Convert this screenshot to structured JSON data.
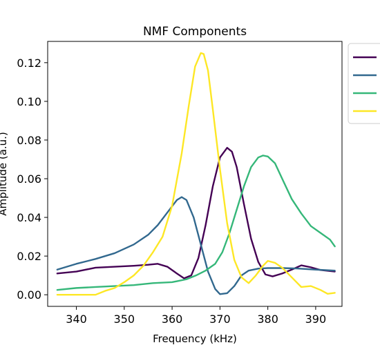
{
  "chart_data": {
    "type": "line",
    "title": "NMF Components",
    "xlabel": "Frequency (kHz)",
    "ylabel": "Amplitude (a.u.)",
    "xlim": [
      334,
      395.5
    ],
    "ylim": [
      -0.006,
      0.131
    ],
    "xticks": [
      340,
      350,
      360,
      370,
      380,
      390
    ],
    "xtick_labels": [
      "340",
      "350",
      "360",
      "370",
      "380",
      "390"
    ],
    "yticks": [
      0.0,
      0.02,
      0.04,
      0.06,
      0.08,
      0.1,
      0.12
    ],
    "ytick_labels": [
      "0.00",
      "0.02",
      "0.04",
      "0.06",
      "0.08",
      "0.10",
      "0.12"
    ],
    "grid": false,
    "legend": {
      "location": "outside-top-right"
    },
    "series": [
      {
        "color": "#440154",
        "x": [
          336,
          340,
          344,
          348,
          352,
          355,
          357,
          359,
          361,
          362.5,
          364,
          365.5,
          367,
          368.5,
          370,
          371.5,
          372.5,
          373.5,
          375,
          376.5,
          378,
          379.5,
          381,
          383,
          385,
          387,
          389,
          391,
          394
        ],
        "y": [
          0.011,
          0.012,
          0.014,
          0.0145,
          0.015,
          0.0155,
          0.016,
          0.0145,
          0.011,
          0.0085,
          0.01,
          0.019,
          0.036,
          0.056,
          0.071,
          0.076,
          0.074,
          0.066,
          0.047,
          0.029,
          0.017,
          0.0105,
          0.0095,
          0.011,
          0.013,
          0.0152,
          0.0142,
          0.0128,
          0.012
        ]
      },
      {
        "color": "#31688e",
        "x": [
          336,
          340,
          344,
          348,
          352,
          355,
          357,
          359,
          361,
          362,
          363,
          364.5,
          366,
          367.5,
          369,
          370,
          371.5,
          373,
          374.5,
          376,
          378,
          380,
          383,
          386,
          390,
          394
        ],
        "y": [
          0.013,
          0.016,
          0.0185,
          0.0215,
          0.026,
          0.031,
          0.036,
          0.0425,
          0.049,
          0.0505,
          0.049,
          0.04,
          0.026,
          0.012,
          0.003,
          0.0003,
          0.0008,
          0.0045,
          0.01,
          0.0125,
          0.0135,
          0.0138,
          0.0138,
          0.0136,
          0.013,
          0.0125
        ]
      },
      {
        "color": "#35b779",
        "x": [
          336,
          340,
          344,
          348,
          352,
          356,
          360,
          363,
          365,
          367,
          369,
          370.5,
          372,
          373.5,
          375,
          376.5,
          378,
          379,
          380,
          381.5,
          383,
          385,
          387,
          389,
          391,
          393,
          394
        ],
        "y": [
          0.0025,
          0.0035,
          0.004,
          0.0045,
          0.005,
          0.006,
          0.0065,
          0.008,
          0.01,
          0.0125,
          0.016,
          0.022,
          0.032,
          0.044,
          0.056,
          0.066,
          0.071,
          0.072,
          0.0715,
          0.068,
          0.06,
          0.0495,
          0.042,
          0.0355,
          0.032,
          0.0285,
          0.025
        ]
      },
      {
        "color": "#fde725",
        "x": [
          336,
          340,
          344,
          346,
          348,
          350,
          352,
          354,
          356,
          358,
          360,
          362,
          363.5,
          364.8,
          366,
          366.6,
          367.5,
          368.5,
          370,
          371.5,
          373,
          374.5,
          376,
          377.5,
          379,
          380,
          381.5,
          383,
          385,
          387,
          389,
          391,
          392.5,
          394
        ],
        "y": [
          0.0,
          0.0,
          0.0,
          0.002,
          0.0035,
          0.0065,
          0.01,
          0.015,
          0.022,
          0.03,
          0.046,
          0.073,
          0.098,
          0.118,
          0.125,
          0.1245,
          0.116,
          0.096,
          0.065,
          0.037,
          0.018,
          0.009,
          0.006,
          0.01,
          0.015,
          0.0175,
          0.0165,
          0.014,
          0.009,
          0.004,
          0.0045,
          0.0025,
          0.0005,
          0.001
        ]
      }
    ]
  }
}
